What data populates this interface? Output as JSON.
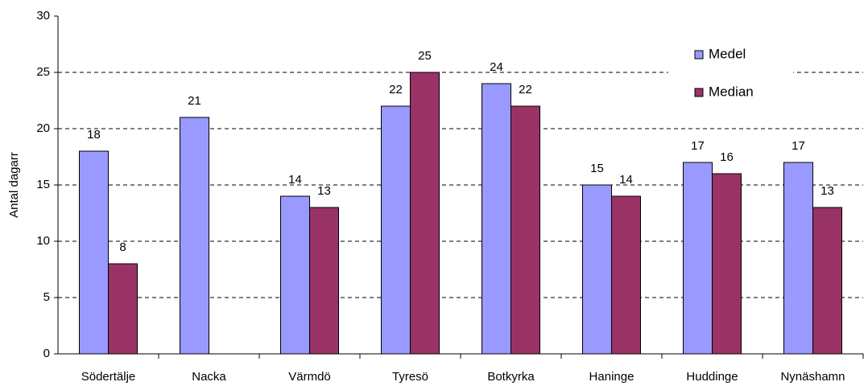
{
  "chart_data": {
    "type": "bar",
    "y_label": "Antal dagarr",
    "categories": [
      "Södertälje",
      "Nacka",
      "Värmdö",
      "Tyresö",
      "Botkyrka",
      "Haninge",
      "Huddinge",
      "Nynäshamn"
    ],
    "series": [
      {
        "name": "Medel",
        "color": "#9999ff",
        "values": [
          18,
          21,
          14,
          22,
          24,
          15,
          17,
          17
        ]
      },
      {
        "name": "Median",
        "color": "#993366",
        "values": [
          8,
          null,
          13,
          25,
          22,
          14,
          16,
          13
        ]
      }
    ],
    "ylim": [
      0,
      30
    ],
    "yticks": [
      0,
      5,
      10,
      15,
      20,
      25,
      30
    ],
    "grid": true,
    "legend": "upper right"
  }
}
